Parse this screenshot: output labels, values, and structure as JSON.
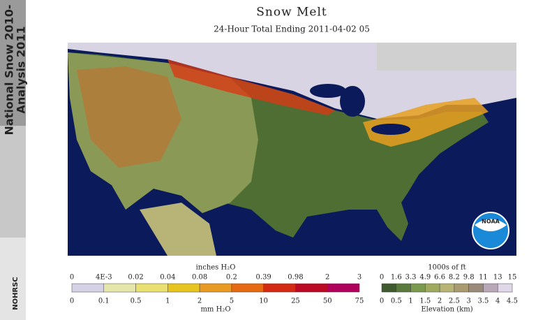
{
  "title": "Snow Melt",
  "subtitle": "24-Hour Total Ending 2011-04-02 05",
  "banner": {
    "line1": "National Snow 2010-",
    "line2": "Analysis 2011",
    "logo": "NOHRSC"
  },
  "noaa_logo": "NOAA",
  "melt_legend": {
    "top_unit": "inches H₂O",
    "top_labels": [
      "0",
      "4E-3",
      "0.02",
      "0.04",
      "0.08",
      "0.2",
      "0.39",
      "0.98",
      "2",
      "3"
    ],
    "bottom_labels": [
      "0",
      "0.1",
      "0.5",
      "1",
      "2",
      "5",
      "10",
      "25",
      "50",
      "75"
    ],
    "bottom_unit": "mm H₂O",
    "colors": [
      "#d6d2e6",
      "#e6e6aa",
      "#e8e070",
      "#e8c41e",
      "#e89a22",
      "#e66a12",
      "#d42a12",
      "#bc0a24",
      "#b0005c"
    ]
  },
  "elevation_legend": {
    "top_unit": "1000s of ft",
    "top_labels": [
      "0",
      "1.6",
      "3.3",
      "4.9",
      "6.6",
      "8.2",
      "9.8",
      "11",
      "13",
      "15"
    ],
    "bottom_labels": [
      "0",
      "0.5",
      "1",
      "1.5",
      "2",
      "2.5",
      "3",
      "3.5",
      "4",
      "4.5"
    ],
    "bottom_unit": "Elevation (km)",
    "colors": [
      "#3e5a2e",
      "#5a7a3e",
      "#7a9a4e",
      "#a0aa5e",
      "#b8b474",
      "#aa9a72",
      "#9a8a7a",
      "#b8a8b8",
      "#e0d8e8"
    ]
  }
}
